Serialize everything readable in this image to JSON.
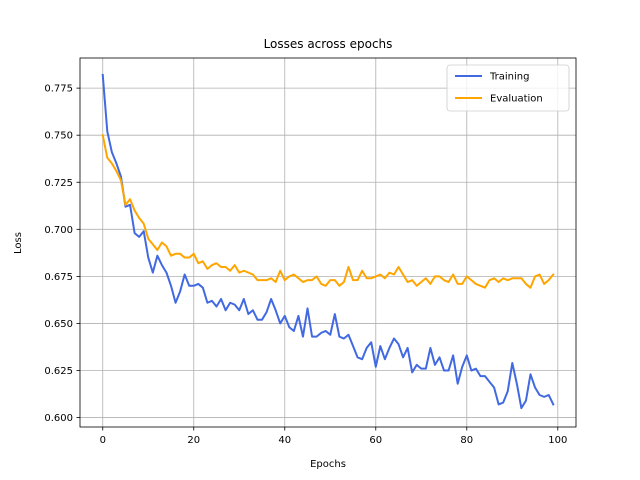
{
  "chart_data": {
    "type": "line",
    "title": "Losses across epochs",
    "xlabel": "Epochs",
    "ylabel": "Loss",
    "xlim": [
      -5,
      104
    ],
    "ylim": [
      0.595,
      0.791
    ],
    "xticks": [
      0,
      20,
      40,
      60,
      80,
      100
    ],
    "yticks": [
      0.6,
      0.625,
      0.65,
      0.675,
      0.7,
      0.725,
      0.75,
      0.775
    ],
    "xtick_labels": [
      "0",
      "20",
      "40",
      "60",
      "80",
      "100"
    ],
    "ytick_labels": [
      "0.600",
      "0.625",
      "0.650",
      "0.675",
      "0.700",
      "0.725",
      "0.750",
      "0.775"
    ],
    "grid": true,
    "legend_position": "top-right",
    "x_start": 0,
    "series": [
      {
        "name": "Training",
        "color": "#4169e1",
        "values": [
          0.782,
          0.752,
          0.741,
          0.735,
          0.728,
          0.712,
          0.713,
          0.698,
          0.696,
          0.699,
          0.685,
          0.677,
          0.686,
          0.681,
          0.677,
          0.67,
          0.661,
          0.667,
          0.676,
          0.67,
          0.67,
          0.671,
          0.669,
          0.661,
          0.662,
          0.659,
          0.663,
          0.657,
          0.661,
          0.66,
          0.657,
          0.663,
          0.655,
          0.657,
          0.652,
          0.652,
          0.656,
          0.663,
          0.657,
          0.65,
          0.654,
          0.648,
          0.646,
          0.654,
          0.643,
          0.658,
          0.643,
          0.643,
          0.645,
          0.646,
          0.644,
          0.655,
          0.643,
          0.642,
          0.644,
          0.638,
          0.632,
          0.631,
          0.637,
          0.64,
          0.627,
          0.638,
          0.631,
          0.637,
          0.642,
          0.639,
          0.632,
          0.637,
          0.624,
          0.628,
          0.626,
          0.626,
          0.637,
          0.628,
          0.632,
          0.625,
          0.625,
          0.633,
          0.618,
          0.627,
          0.633,
          0.625,
          0.626,
          0.622,
          0.622,
          0.619,
          0.616,
          0.607,
          0.608,
          0.614,
          0.629,
          0.618,
          0.605,
          0.609,
          0.623,
          0.616,
          0.612,
          0.611,
          0.612,
          0.607
        ]
      },
      {
        "name": "Evaluation",
        "color": "#ffa500",
        "values": [
          0.75,
          0.738,
          0.735,
          0.731,
          0.726,
          0.713,
          0.716,
          0.71,
          0.706,
          0.703,
          0.695,
          0.692,
          0.689,
          0.693,
          0.691,
          0.686,
          0.687,
          0.687,
          0.685,
          0.685,
          0.687,
          0.682,
          0.683,
          0.679,
          0.681,
          0.682,
          0.68,
          0.68,
          0.678,
          0.681,
          0.677,
          0.678,
          0.677,
          0.676,
          0.673,
          0.673,
          0.673,
          0.674,
          0.672,
          0.678,
          0.673,
          0.675,
          0.676,
          0.674,
          0.672,
          0.673,
          0.673,
          0.675,
          0.671,
          0.67,
          0.673,
          0.673,
          0.67,
          0.672,
          0.68,
          0.673,
          0.673,
          0.678,
          0.674,
          0.674,
          0.675,
          0.676,
          0.674,
          0.677,
          0.676,
          0.68,
          0.676,
          0.672,
          0.673,
          0.67,
          0.672,
          0.674,
          0.671,
          0.675,
          0.675,
          0.673,
          0.672,
          0.676,
          0.671,
          0.671,
          0.675,
          0.673,
          0.671,
          0.67,
          0.669,
          0.673,
          0.674,
          0.672,
          0.674,
          0.673,
          0.674,
          0.674,
          0.674,
          0.671,
          0.669,
          0.675,
          0.676,
          0.671,
          0.673,
          0.676
        ]
      }
    ]
  }
}
